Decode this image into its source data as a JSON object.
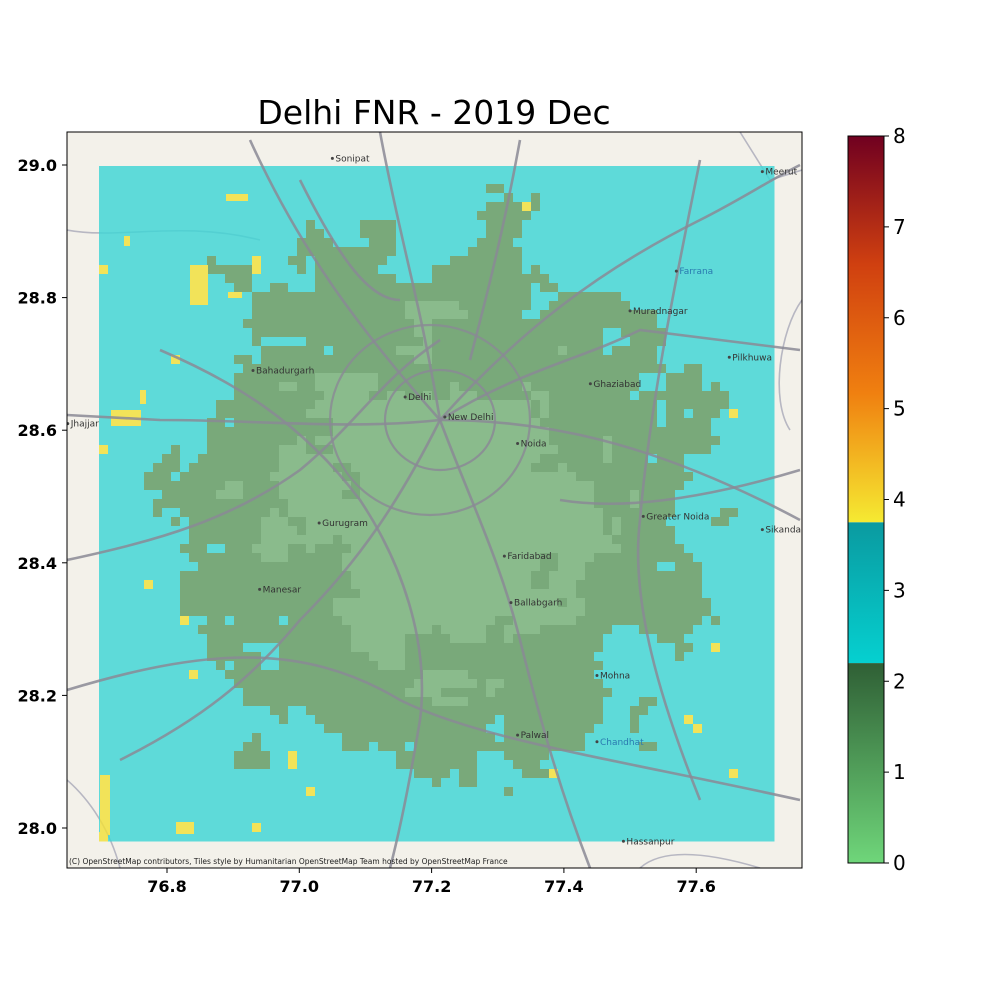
{
  "title": "Delhi FNR - 2019 Dec",
  "attribution": "(C) OpenStreetMap contributors, Tiles style by Humanitarian OpenStreetMap Team hosted by OpenStreetMap France",
  "x_ticks": [
    "76.8",
    "77.0",
    "77.2",
    "77.4",
    "77.6"
  ],
  "y_ticks": [
    "29.0",
    "28.8",
    "28.6",
    "28.4",
    "28.2",
    "28.0"
  ],
  "colorbar": {
    "ticks": [
      "0",
      "1",
      "2",
      "3",
      "4",
      "5",
      "6",
      "7",
      "8"
    ],
    "range": [
      0,
      8
    ],
    "segments": [
      {
        "from": 0,
        "to": 2.2,
        "colors": [
          "#6fd67a",
          "#2f5f35"
        ]
      },
      {
        "from": 2.2,
        "to": 3.75,
        "colors": [
          "#05d0d0",
          "#0a9aa0"
        ]
      },
      {
        "from": 3.75,
        "to": 8,
        "colors": [
          "#f5ea32",
          "#f08010",
          "#d04010",
          "#700020"
        ]
      }
    ]
  },
  "colors": {
    "low_fnr": "#5f9a62",
    "mid_fnr": "#3ed6d6",
    "high_fnr": "#f2e03a",
    "basemap": "#f3f1ea",
    "roads": "#8a8a95"
  },
  "places": [
    {
      "name": "Sonipat",
      "lon": 77.05,
      "lat": 29.01,
      "kind": "city"
    },
    {
      "name": "Bahadurgarh",
      "lon": 76.93,
      "lat": 28.69,
      "kind": "city"
    },
    {
      "name": "Jhajjar",
      "lon": 76.65,
      "lat": 28.61,
      "kind": "city"
    },
    {
      "name": "Delhi",
      "lon": 77.16,
      "lat": 28.65,
      "kind": "city"
    },
    {
      "name": "New Delhi",
      "lon": 77.22,
      "lat": 28.62,
      "kind": "city"
    },
    {
      "name": "Ghaziabad",
      "lon": 77.44,
      "lat": 28.67,
      "kind": "city"
    },
    {
      "name": "Noida",
      "lon": 77.33,
      "lat": 28.58,
      "kind": "city"
    },
    {
      "name": "Gurugram",
      "lon": 77.03,
      "lat": 28.46,
      "kind": "city"
    },
    {
      "name": "Faridabad",
      "lon": 77.31,
      "lat": 28.41,
      "kind": "city"
    },
    {
      "name": "Greater Noida",
      "lon": 77.52,
      "lat": 28.47,
      "kind": "city"
    },
    {
      "name": "Ballabgarh",
      "lon": 77.32,
      "lat": 28.34,
      "kind": "city"
    },
    {
      "name": "Manesar",
      "lon": 76.94,
      "lat": 28.36,
      "kind": "city"
    },
    {
      "name": "Palwal",
      "lon": 77.33,
      "lat": 28.14,
      "kind": "city"
    },
    {
      "name": "Hassanpur",
      "lon": 77.49,
      "lat": 27.98,
      "kind": "city"
    },
    {
      "name": "Muradnagar",
      "lon": 77.5,
      "lat": 28.78,
      "kind": "city"
    },
    {
      "name": "Pilkhuwa",
      "lon": 77.65,
      "lat": 28.71,
      "kind": "city"
    },
    {
      "name": "Sikandarabad",
      "lon": 77.7,
      "lat": 28.45,
      "kind": "city"
    },
    {
      "name": "Mohna",
      "lon": 77.45,
      "lat": 28.23,
      "kind": "city"
    },
    {
      "name": "Meerut",
      "lon": 77.7,
      "lat": 28.99,
      "kind": "city"
    },
    {
      "name": "Farrana",
      "lon": 77.57,
      "lat": 28.84,
      "kind": "water"
    },
    {
      "name": "Chandhat",
      "lon": 77.45,
      "lat": 28.13,
      "kind": "water"
    }
  ]
}
